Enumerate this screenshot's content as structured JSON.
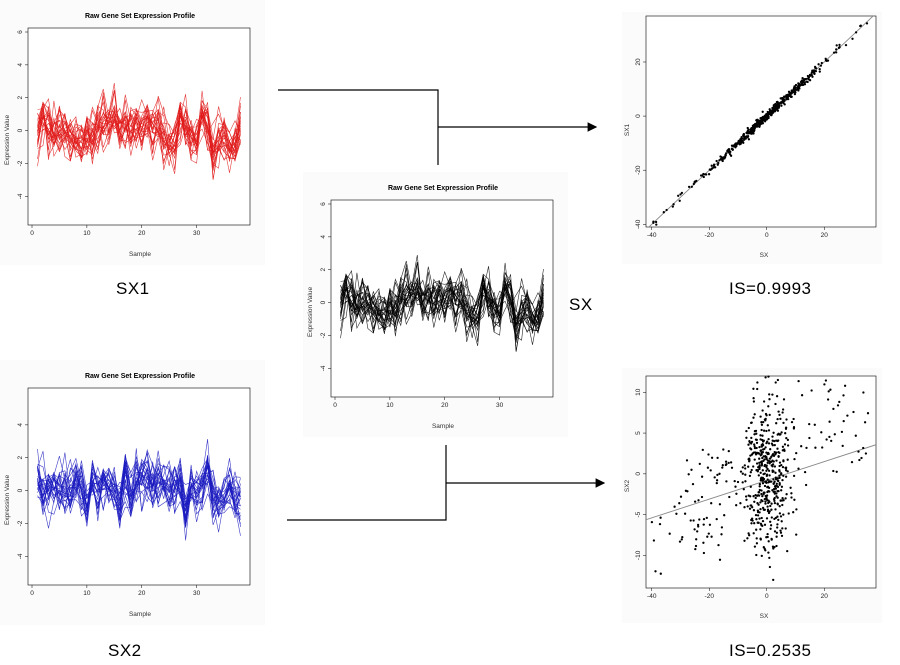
{
  "panels": {
    "sx1": {
      "title": "Raw Gene Set Expression Profile",
      "ylabel": "Expression Value",
      "xlabel": "Sample",
      "label": "SX1",
      "color": "#e01a1a"
    },
    "sx": {
      "title": "Raw Gene Set Expression Profile",
      "ylabel": "Expression Value",
      "xlabel": "Sample",
      "label": "SX",
      "color": "#000000"
    },
    "sx2": {
      "title": "Raw Gene Set Expression Profile",
      "ylabel": "Expression Value",
      "xlabel": "Sample",
      "label": "SX2",
      "color": "#1a1ac0"
    },
    "scatter1": {
      "xlabel": "SX",
      "ylabel": "SX1",
      "caption": "IS=0.9993"
    },
    "scatter2": {
      "xlabel": "SX",
      "ylabel": "SX2",
      "caption": "IS=0.2535"
    }
  },
  "chart_data": [
    {
      "type": "line",
      "id": "sx1",
      "title": "Raw Gene Set Expression Profile",
      "xlabel": "Sample",
      "ylabel": "Expression Value",
      "xlim": [
        0,
        39
      ],
      "ylim": [
        -5.5,
        6
      ],
      "xticks": [
        0,
        10,
        20,
        30
      ],
      "yticks": [
        -4,
        -2,
        0,
        2,
        4,
        6
      ],
      "n_samples": 38,
      "n_series": 25,
      "value_range": [
        -3,
        3.8
      ]
    },
    {
      "type": "line",
      "id": "sx",
      "title": "Raw Gene Set Expression Profile",
      "xlabel": "Sample",
      "ylabel": "Expression Value",
      "xlim": [
        0,
        39
      ],
      "ylim": [
        -5.5,
        6
      ],
      "xticks": [
        0,
        10,
        20,
        30
      ],
      "yticks": [
        -4,
        -2,
        0,
        2,
        4,
        6
      ],
      "n_samples": 38,
      "n_series": 25,
      "value_range": [
        -3,
        3.8
      ]
    },
    {
      "type": "line",
      "id": "sx2",
      "title": "Raw Gene Set Expression Profile",
      "xlabel": "Sample",
      "ylabel": "Expression Value",
      "xlim": [
        0,
        39
      ],
      "ylim": [
        -5.5,
        6
      ],
      "xticks": [
        0,
        10,
        20,
        30
      ],
      "yticks": [
        -4,
        -2,
        0,
        2,
        4
      ],
      "n_samples": 38,
      "n_series": 25,
      "value_range": [
        -3.3,
        3.3
      ]
    },
    {
      "type": "scatter",
      "id": "scatter1",
      "xlabel": "SX",
      "ylabel": "SX1",
      "xlim": [
        -42,
        38
      ],
      "ylim": [
        -41,
        37
      ],
      "xticks": [
        -40,
        -20,
        0,
        20
      ],
      "yticks": [
        -40,
        -20,
        0,
        20
      ],
      "fit_line": {
        "slope": 1.0,
        "intercept": 0
      },
      "n_points": 500,
      "spread": 0.8
    },
    {
      "type": "scatter",
      "id": "scatter2",
      "xlabel": "SX",
      "ylabel": "SX2",
      "xlim": [
        -42,
        38
      ],
      "ylim": [
        -14,
        12
      ],
      "xticks": [
        -40,
        -20,
        0,
        20
      ],
      "yticks": [
        -10,
        -5,
        0,
        5,
        10
      ],
      "fit_line": {
        "slope": 0.115,
        "intercept": -0.8
      },
      "n_points": 600
    }
  ]
}
